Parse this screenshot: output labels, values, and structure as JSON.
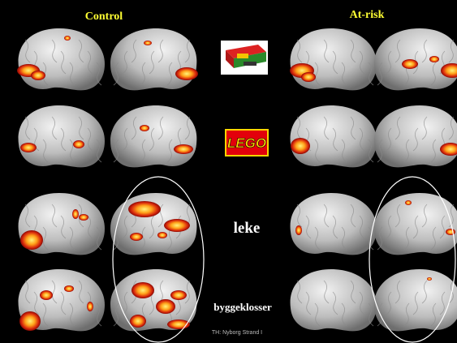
{
  "header": {
    "left_group": "Control",
    "right_group": "At-risk"
  },
  "stimuli": {
    "logo": "LEGO",
    "word1": "leke",
    "word2": "byggeklosser"
  },
  "footer": "TH: Nyborg Strand I"
}
